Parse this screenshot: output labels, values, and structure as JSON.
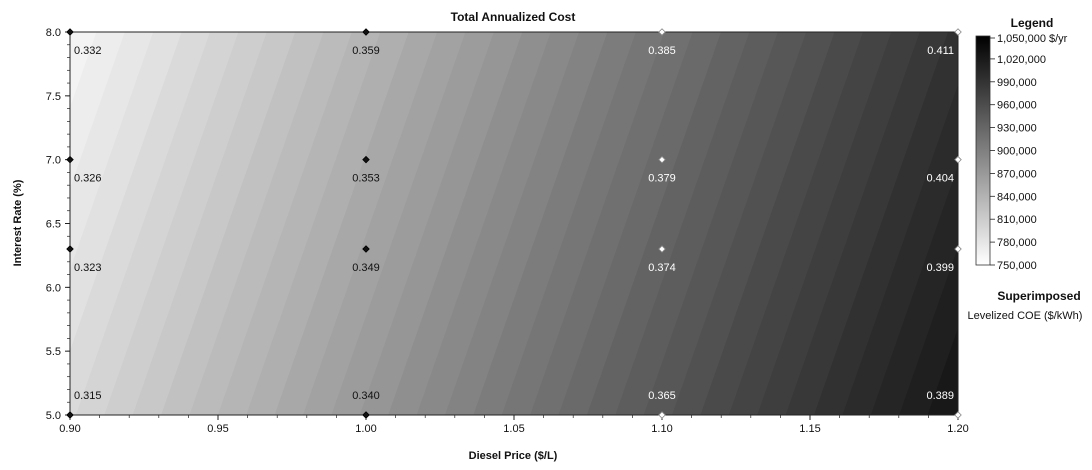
{
  "chart_data": {
    "type": "heatmap",
    "title": "Total Annualized Cost",
    "xlabel": "Diesel Price  ($/L)",
    "ylabel": "Interest Rate  (%)",
    "xlim": [
      0.9,
      1.2
    ],
    "ylim": [
      5.0,
      8.0
    ],
    "x_ticks": [
      "0.90",
      "0.95",
      "1.00",
      "1.05",
      "1.10",
      "1.15",
      "1.20"
    ],
    "y_ticks": [
      "5.0",
      "5.5",
      "6.0",
      "6.5",
      "7.0",
      "7.5",
      "8.0"
    ],
    "grid": false,
    "legend": {
      "title": "Legend",
      "unit_label": "1,050,000 $/yr",
      "range": [
        750000,
        1050000
      ],
      "labels": [
        "1,050,000 $/yr",
        "1,020,000",
        "990,000",
        "960,000",
        "930,000",
        "900,000",
        "870,000",
        "840,000",
        "810,000",
        "780,000",
        "750,000"
      ],
      "color_low": "#ffffff",
      "color_high": "#000000",
      "placement": "right"
    },
    "superimposed": {
      "title": "Superimposed",
      "subtitle": "Levelized COE ($/kWh)",
      "points": [
        {
          "x": 0.9,
          "y": 8.0,
          "label": "0.332"
        },
        {
          "x": 1.0,
          "y": 8.0,
          "label": "0.359"
        },
        {
          "x": 1.1,
          "y": 8.0,
          "label": "0.385"
        },
        {
          "x": 1.2,
          "y": 8.0,
          "label": "0.411"
        },
        {
          "x": 0.9,
          "y": 7.0,
          "label": "0.326"
        },
        {
          "x": 1.0,
          "y": 7.0,
          "label": "0.353"
        },
        {
          "x": 1.1,
          "y": 7.0,
          "label": "0.379"
        },
        {
          "x": 1.2,
          "y": 7.0,
          "label": "0.404"
        },
        {
          "x": 0.9,
          "y": 6.3,
          "label": "0.323"
        },
        {
          "x": 1.0,
          "y": 6.3,
          "label": "0.349"
        },
        {
          "x": 1.1,
          "y": 6.3,
          "label": "0.374"
        },
        {
          "x": 1.2,
          "y": 6.3,
          "label": "0.399"
        },
        {
          "x": 0.9,
          "y": 5.0,
          "label": "0.315"
        },
        {
          "x": 1.0,
          "y": 5.0,
          "label": "0.340"
        },
        {
          "x": 1.1,
          "y": 5.0,
          "label": "0.365"
        },
        {
          "x": 1.2,
          "y": 5.0,
          "label": "0.389"
        }
      ]
    },
    "cost_surface": {
      "min": 760000,
      "max": 1025000
    }
  }
}
